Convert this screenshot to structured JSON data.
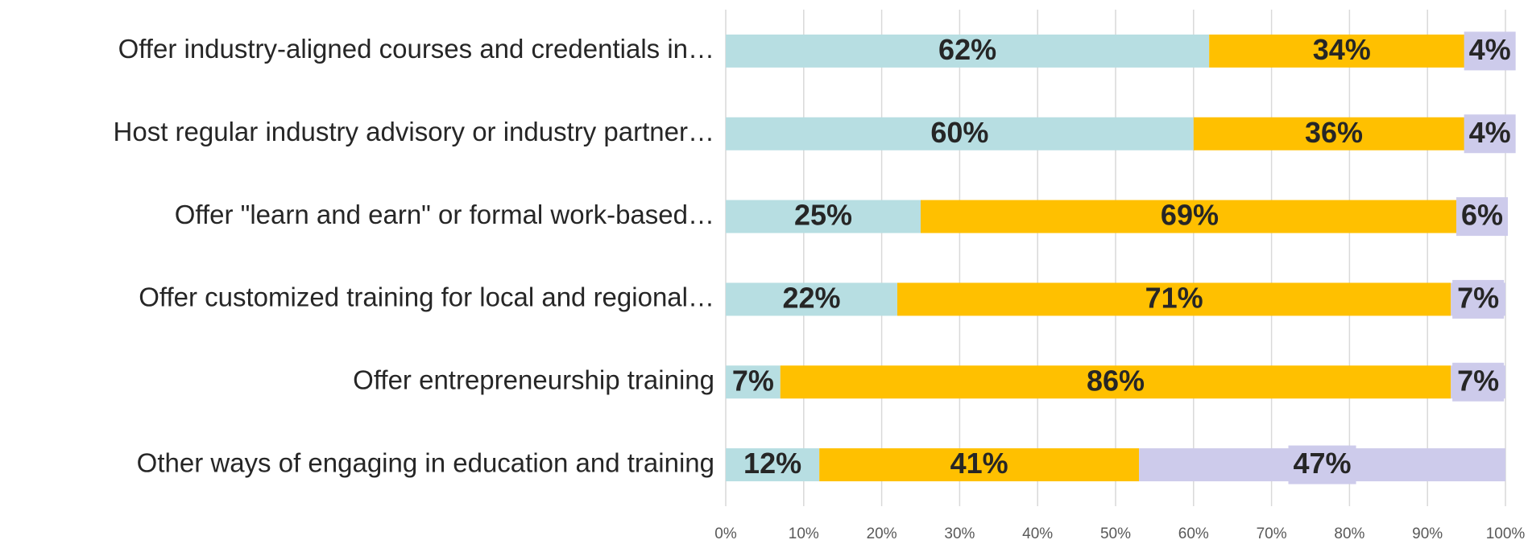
{
  "chart_data": {
    "type": "stacked-bar-horizontal",
    "categories": [
      "Offer industry-aligned courses and credentials in…",
      "Host regular industry advisory or industry partner…",
      "Offer \"learn and earn\" or formal work-based…",
      "Offer customized training for local and regional…",
      "Offer entrepreneurship training",
      "Other ways of engaging in education and training"
    ],
    "series": [
      {
        "color": "#b7dee2",
        "values": [
          62,
          60,
          25,
          22,
          7,
          12
        ],
        "value_labels": [
          "62%",
          "60%",
          "25%",
          "22%",
          "7%",
          "12%"
        ]
      },
      {
        "color": "#ffc000",
        "values": [
          34,
          36,
          69,
          71,
          86,
          41
        ],
        "value_labels": [
          "34%",
          "36%",
          "69%",
          "71%",
          "86%",
          "41%"
        ]
      },
      {
        "color": "#cdcbeb",
        "values": [
          4,
          4,
          6,
          7,
          7,
          47
        ],
        "value_labels": [
          "4%",
          "4%",
          "6%",
          "7%",
          "7%",
          "47%"
        ]
      }
    ],
    "xlim": [
      0,
      100
    ],
    "xticks": [
      {
        "value": 0,
        "label": "0%"
      },
      {
        "value": 10,
        "label": "10%"
      },
      {
        "value": 20,
        "label": "20%"
      },
      {
        "value": 30,
        "label": "30%"
      },
      {
        "value": 40,
        "label": "40%"
      },
      {
        "value": 50,
        "label": "50%"
      },
      {
        "value": 60,
        "label": "60%"
      },
      {
        "value": 70,
        "label": "70%"
      },
      {
        "value": 80,
        "label": "80%"
      },
      {
        "value": 90,
        "label": "90%"
      },
      {
        "value": 100,
        "label": "100%"
      }
    ],
    "grid": true
  }
}
